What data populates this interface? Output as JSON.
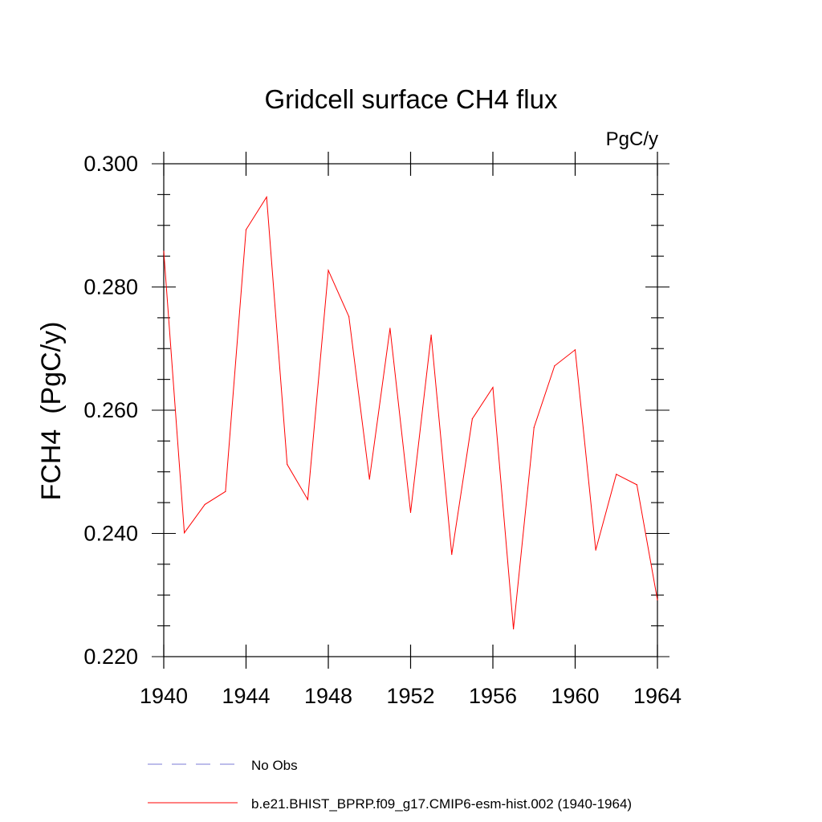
{
  "chart_data": {
    "type": "line",
    "title": "Gridcell surface CH4 flux",
    "units_label": "PgC/y",
    "ylabel": "FCH4  (PgC/y)",
    "xlabel": "",
    "xlim": [
      1940,
      1964
    ],
    "ylim": [
      0.22,
      0.3
    ],
    "x_ticks": [
      1940,
      1944,
      1948,
      1952,
      1956,
      1960,
      1964
    ],
    "x_tick_labels": [
      "1940",
      "1944",
      "1948",
      "1952",
      "1956",
      "1960",
      "1964"
    ],
    "y_ticks": [
      0.22,
      0.24,
      0.26,
      0.28,
      0.3
    ],
    "y_tick_labels": [
      "0.220",
      "0.240",
      "0.260",
      "0.280",
      "0.300"
    ],
    "series": [
      {
        "name": "b.e21.BHIST_BPRP.f09_g17.CMIP6-esm-hist.002 (1940-1964)",
        "color": "#ff0000",
        "x": [
          1940,
          1941,
          1942,
          1943,
          1944,
          1945,
          1946,
          1947,
          1948,
          1949,
          1950,
          1951,
          1952,
          1953,
          1954,
          1955,
          1956,
          1957,
          1958,
          1959,
          1960,
          1961,
          1962,
          1963,
          1964
        ],
        "values": [
          0.2858,
          0.2401,
          0.2447,
          0.2468,
          0.2893,
          0.2946,
          0.2512,
          0.2455,
          0.2827,
          0.2752,
          0.2488,
          0.2733,
          0.2434,
          0.2722,
          0.2366,
          0.2586,
          0.2637,
          0.2245,
          0.2572,
          0.2672,
          0.2698,
          0.2373,
          0.2496,
          0.2479,
          0.2292
        ]
      }
    ],
    "legend": [
      {
        "label": "No Obs",
        "style": "dashed",
        "color": "#7b7bd6"
      },
      {
        "label": "b.e21.BHIST_BPRP.f09_g17.CMIP6-esm-hist.002 (1940-1964)",
        "style": "solid",
        "color": "#ff0000"
      }
    ]
  }
}
